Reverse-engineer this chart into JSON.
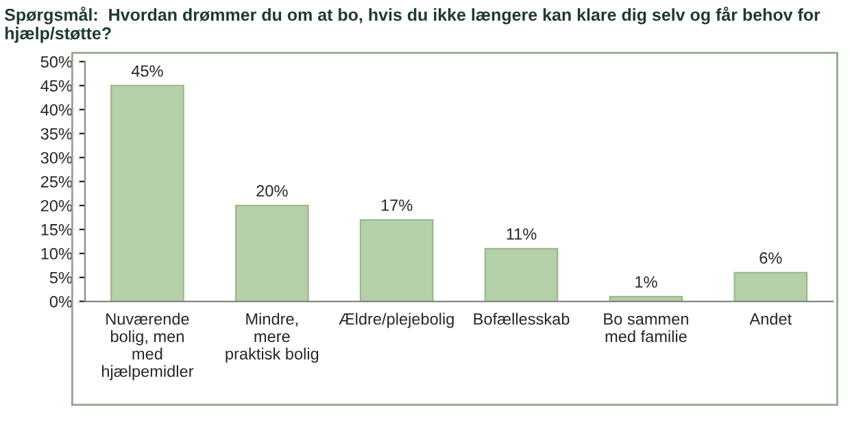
{
  "chart_data": {
    "type": "bar",
    "title": "Spørgsmål:  Hvordan drømmer du om at bo, hvis du ikke længere kan klare dig selv og får behov for hjælp/støtte?",
    "categories": [
      "Nuværende\nbolig, men\nmed\nhjælpemidler",
      "Mindre,\nmere\npraktisk bolig",
      "Ældre/plejebolig",
      "Bofællesskab",
      "Bo sammen\nmed familie",
      "Andet"
    ],
    "values": [
      45,
      20,
      17,
      11,
      1,
      6
    ],
    "value_labels": [
      "45%",
      "20%",
      "17%",
      "11%",
      "1%",
      "6%"
    ],
    "color": "#b5cfa8",
    "ylim": [
      0,
      50
    ],
    "yticks": [
      {
        "value": 0,
        "label": "0%"
      },
      {
        "value": 5,
        "label": "5%"
      },
      {
        "value": 10,
        "label": "10%"
      },
      {
        "value": 15,
        "label": "15%"
      },
      {
        "value": 20,
        "label": "20%"
      },
      {
        "value": 25,
        "label": "25%"
      },
      {
        "value": 30,
        "label": "30%"
      },
      {
        "value": 35,
        "label": "35%"
      },
      {
        "value": 40,
        "label": "40%"
      },
      {
        "value": 45,
        "label": "45%"
      },
      {
        "value": 50,
        "label": "50%"
      }
    ],
    "grid": false,
    "legend": false
  }
}
